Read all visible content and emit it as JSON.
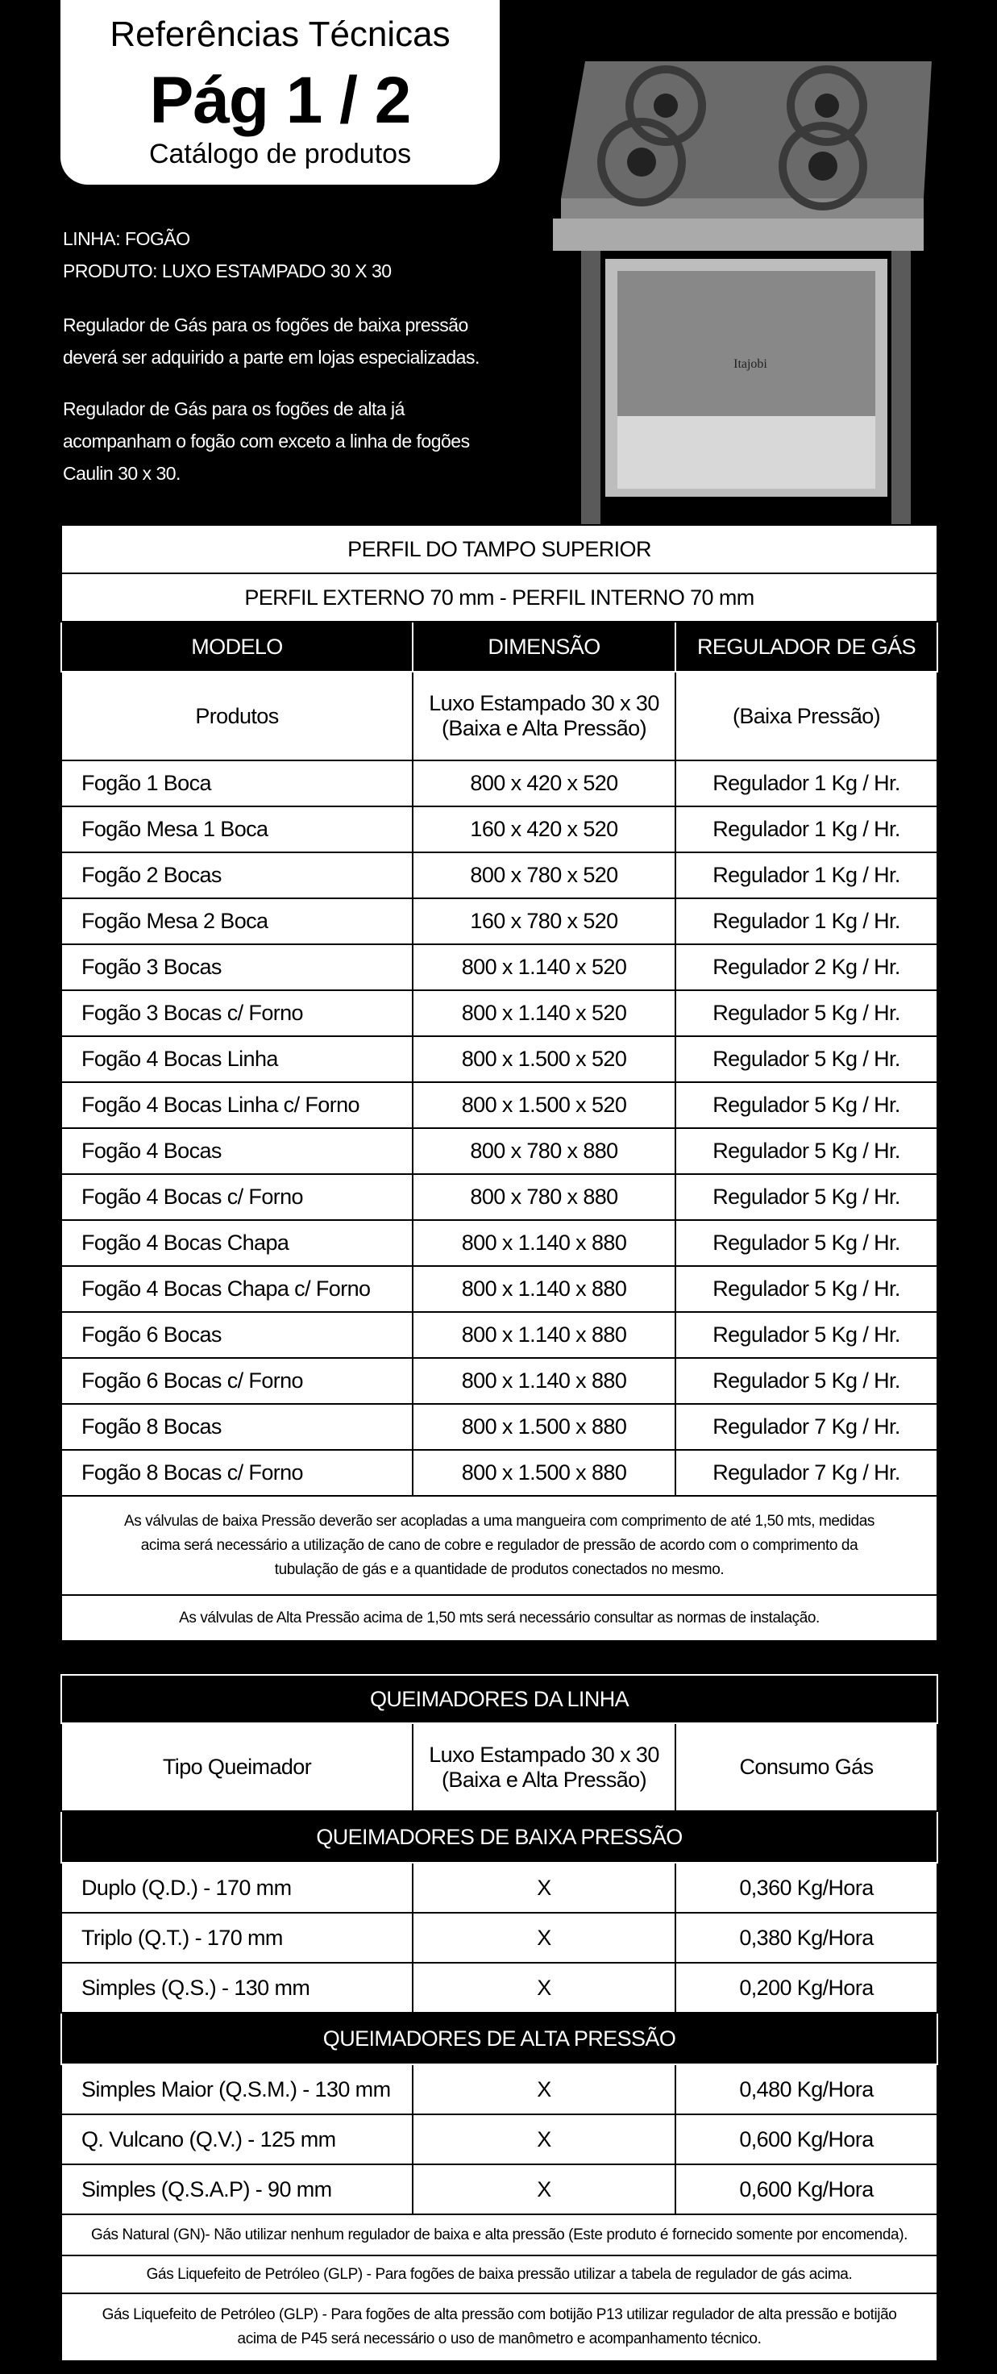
{
  "header": {
    "title": "Referências Técnicas",
    "page": "Pág 1 / 2",
    "subtitle": "Catálogo de produtos"
  },
  "intro": {
    "linha": "LINHA: FOGÃO",
    "produto": "PRODUTO: LUXO ESTAMPADO 30 X 30",
    "p1a": "Regulador de Gás para os fogões de baixa pressão",
    "p1b": "deverá ser adquirido a parte em lojas especializadas.",
    "p2a": "Regulador de Gás para os fogões de alta já",
    "p2b": "acompanham o fogão com exceto a linha de fogões",
    "p2c": "Caulin 30 x 30."
  },
  "table1": {
    "title": "PERFIL DO TAMPO SUPERIOR",
    "subtitle": "PERFIL EXTERNO 70 mm - PERFIL INTERNO 70 mm",
    "headers": [
      "MODELO",
      "DIMENSÃO",
      "REGULADOR DE GÁS"
    ],
    "subheader": [
      "Produtos",
      "Luxo Estampado 30 x 30",
      "(Baixa e Alta Pressão)",
      "(Baixa Pressão)"
    ],
    "rows": [
      [
        "Fogão 1 Boca",
        "800 x 420 x 520",
        "Regulador 1 Kg / Hr."
      ],
      [
        "Fogão Mesa 1 Boca",
        "160 x 420 x 520",
        "Regulador 1 Kg / Hr."
      ],
      [
        "Fogão 2 Bocas",
        "800 x 780 x 520",
        "Regulador 1 Kg / Hr."
      ],
      [
        "Fogão Mesa 2 Boca",
        "160 x 780 x 520",
        "Regulador 1 Kg / Hr."
      ],
      [
        "Fogão 3 Bocas",
        "800 x 1.140 x 520",
        "Regulador 2 Kg / Hr."
      ],
      [
        "Fogão 3 Bocas  c/ Forno",
        "800 x 1.140 x 520",
        "Regulador 5 Kg / Hr."
      ],
      [
        "Fogão 4 Bocas Linha",
        "800 x 1.500 x 520",
        "Regulador 5 Kg / Hr."
      ],
      [
        "Fogão 4 Bocas Linha  c/ Forno",
        "800 x 1.500 x 520",
        "Regulador 5 Kg / Hr."
      ],
      [
        "Fogão 4 Bocas",
        "800 x 780 x 880",
        "Regulador 5 Kg / Hr."
      ],
      [
        "Fogão 4 Bocas  c/ Forno",
        "800 x 780 x 880",
        "Regulador 5 Kg / Hr."
      ],
      [
        "Fogão 4 Bocas  Chapa",
        "800 x 1.140 x 880",
        "Regulador 5 Kg / Hr."
      ],
      [
        "Fogão 4 Bocas  Chapa  c/ Forno",
        "800 x 1.140 x 880",
        "Regulador 5 Kg / Hr."
      ],
      [
        "Fogão 6 Bocas",
        "800 x 1.140 x 880",
        "Regulador 5 Kg / Hr."
      ],
      [
        "Fogão 6 Bocas  c/ Forno",
        "800 x 1.140 x 880",
        "Regulador 5 Kg / Hr."
      ],
      [
        "Fogão 8 Bocas",
        "800 x 1.500 x 880",
        "Regulador 7 Kg / Hr."
      ],
      [
        "Fogão 8 Bocas  c/ Forno",
        "800 x 1.500 x 880",
        "Regulador 7 Kg / Hr."
      ]
    ],
    "note1": "As válvulas de baixa Pressão deverão ser acopladas a uma mangueira com comprimento de até 1,50 mts, medidas acima será necessário a utilização de cano de cobre e regulador de pressão de acordo com o comprimento da tubulação de gás e a quantidade de produtos conectados no mesmo.",
    "note2": "As válvulas de Alta Pressão acima de 1,50 mts será necessário consultar as normas de instalação."
  },
  "table2": {
    "title": "QUEIMADORES DA LINHA",
    "headers": [
      "Tipo Queimador",
      "Luxo Estampado 30 x 30",
      "(Baixa e Alta Pressão)",
      "Consumo Gás"
    ],
    "low_title": "QUEIMADORES DE BAIXA PRESSÃO",
    "low": [
      [
        "Duplo (Q.D.)  - 170 mm",
        "X",
        "0,360 Kg/Hora"
      ],
      [
        "Triplo (Q.T.) - 170 mm",
        "X",
        "0,380 Kg/Hora"
      ],
      [
        "Simples (Q.S.) - 130 mm",
        "X",
        "0,200 Kg/Hora"
      ]
    ],
    "high_title": "QUEIMADORES DE ALTA PRESSÃO",
    "high": [
      [
        "Simples Maior (Q.S.M.) - 130 mm",
        "X",
        "0,480 Kg/Hora"
      ],
      [
        "Q. Vulcano (Q.V.) - 125 mm",
        "X",
        "0,600 Kg/Hora"
      ],
      [
        "Simples (Q.S.A.P) - 90 mm",
        "X",
        "0,600 Kg/Hora"
      ]
    ],
    "note1": "Gás Natural (GN)- Não utilizar nenhum regulador de baixa e alta pressão  (Este produto é fornecido somente por encomenda).",
    "note2": "Gás Liquefeito de Petróleo (GLP) - Para fogões de baixa pressão utilizar a tabela de regulador de gás acima.",
    "note3": "Gás Liquefeito de Petróleo (GLP) - Para fogões de alta pressão com botijão P13 utilizar regulador de alta pressão e botijão acima de P45 será necessário o uso de manômetro e acompanhamento técnico."
  },
  "product_image": {
    "brand": "Itajobi"
  }
}
